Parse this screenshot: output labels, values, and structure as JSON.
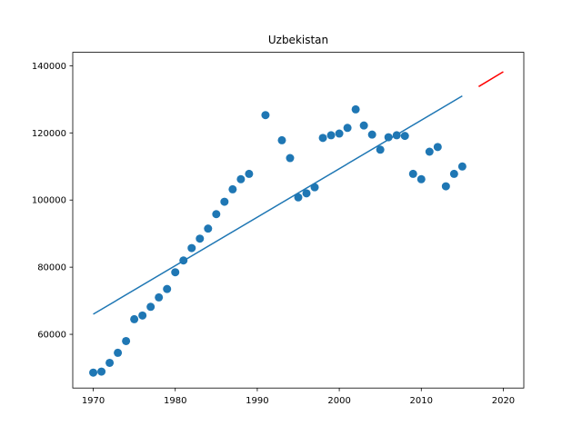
{
  "chart_data": {
    "type": "scatter",
    "title": "Uzbekistan",
    "xlabel": "",
    "ylabel": "",
    "xlim": [
      1967.5,
      2022.5
    ],
    "ylim": [
      44000,
      144000
    ],
    "xticks": [
      1970,
      1980,
      1990,
      2000,
      2010,
      2020
    ],
    "yticks": [
      60000,
      80000,
      100000,
      120000,
      140000
    ],
    "xtick_labels": [
      "1970",
      "1980",
      "1990",
      "2000",
      "2010",
      "2020"
    ],
    "ytick_labels": [
      "60000",
      "80000",
      "100000",
      "120000",
      "140000"
    ],
    "grid": false,
    "points": {
      "color": "#1f77b4",
      "x": [
        1970,
        1971,
        1972,
        1973,
        1974,
        1975,
        1976,
        1977,
        1978,
        1979,
        1980,
        1981,
        1982,
        1983,
        1984,
        1985,
        1986,
        1987,
        1988,
        1989,
        1991,
        1993,
        1994,
        1995,
        1996,
        1997,
        1998,
        1999,
        2000,
        2001,
        2002,
        2003,
        2004,
        2005,
        2006,
        2007,
        2008,
        2009,
        2010,
        2011,
        2012,
        2013,
        2014,
        2015
      ],
      "y": [
        48600,
        48900,
        51500,
        54500,
        58000,
        64500,
        65600,
        68200,
        71000,
        73500,
        78500,
        82000,
        85700,
        88500,
        91500,
        95800,
        99500,
        103200,
        106200,
        107800,
        125300,
        117800,
        112500,
        100800,
        102000,
        103800,
        118500,
        119300,
        119800,
        121500,
        127000,
        122200,
        119500,
        115000,
        118700,
        119300,
        119100,
        107800,
        106200,
        114400,
        115800,
        104100,
        107800,
        110000
      ]
    },
    "fit_line": {
      "color": "#1f77b4",
      "x": [
        1970,
        2015
      ],
      "y": [
        66000,
        131000
      ]
    },
    "forecast_line": {
      "color": "#ff0000",
      "x": [
        2017,
        2020
      ],
      "y": [
        133800,
        138200
      ]
    }
  }
}
